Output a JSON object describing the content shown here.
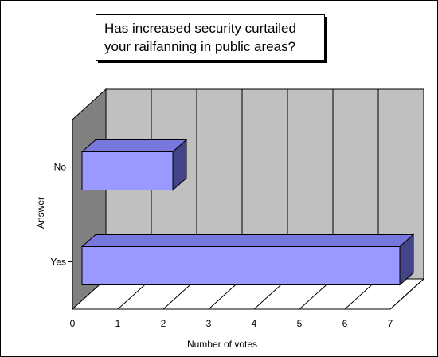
{
  "chart_data": {
    "type": "bar",
    "orientation": "horizontal",
    "three_d": true,
    "title_lines": [
      "Has increased security curtailed",
      "your railfanning in public areas?"
    ],
    "categories": [
      "No",
      "Yes"
    ],
    "values": [
      2,
      7
    ],
    "xlabel": "Number of votes",
    "ylabel": "Answer",
    "xlim": [
      0,
      7
    ],
    "xticks": [
      "0",
      "1",
      "2",
      "3",
      "4",
      "5",
      "6",
      "7"
    ],
    "grid": true,
    "legend": "none",
    "colors": {
      "bar_front": "#9999ff",
      "bar_top": "#7777dd",
      "bar_side": "#444488",
      "back_wall": "#c0c0c0",
      "side_wall": "#808080",
      "floor": "#ffffff",
      "outline": "#000000",
      "frame": "#000000"
    }
  }
}
